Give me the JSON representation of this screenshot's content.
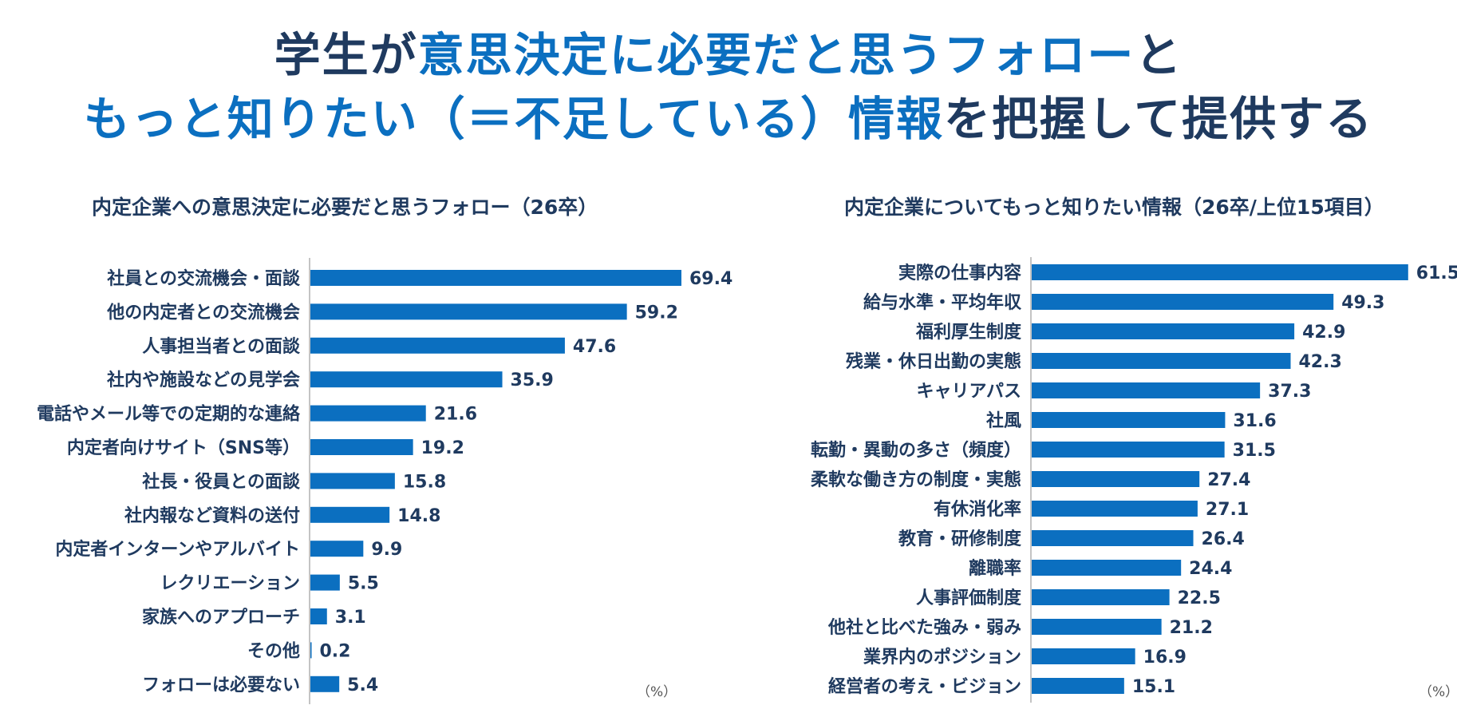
{
  "headline": {
    "line1": [
      {
        "text": "学生が",
        "highlight": false
      },
      {
        "text": "意思決定に必要だと思うフォロー",
        "highlight": true
      },
      {
        "text": "と",
        "highlight": false
      }
    ],
    "line2": [
      {
        "text": "もっと知りたい（＝不足している）情報",
        "highlight": true
      },
      {
        "text": "を把握して提供する",
        "highlight": false
      }
    ]
  },
  "colors": {
    "bar": "#0b6fc0",
    "text": "#1f3a5f",
    "highlight": "#0b6fc0",
    "axis": "#b0b0b0"
  },
  "chart_data": [
    {
      "type": "bar",
      "orientation": "horizontal",
      "title": "内定企業への意思決定に必要だと思うフォロー（26卒）",
      "unit_label": "（%）",
      "xlim": [
        0,
        80
      ],
      "categories": [
        "社員との交流機会・面談",
        "他の内定者との交流機会",
        "人事担当者との面談",
        "社内や施設などの見学会",
        "電話やメール等での定期的な連絡",
        "内定者向けサイト（SNS等）",
        "社長・役員との面談",
        "社内報など資料の送付",
        "内定者インターンやアルバイト",
        "レクリエーション",
        "家族へのアプローチ",
        "その他",
        "フォローは必要ない"
      ],
      "values": [
        69.4,
        59.2,
        47.6,
        35.9,
        21.6,
        19.2,
        15.8,
        14.8,
        9.9,
        5.5,
        3.1,
        0.2,
        5.4
      ],
      "labels": [
        "69.4",
        "59.2",
        "47.6",
        "35.9",
        "21.6",
        "19.2",
        "15.8",
        "14.8",
        "9.9",
        "5.5",
        "3.1",
        "0.2",
        "5.4"
      ]
    },
    {
      "type": "bar",
      "orientation": "horizontal",
      "title": "内定企業についてもっと知りたい情報（26卒/上位15項目）",
      "unit_label": "（%）",
      "xlim": [
        0,
        70
      ],
      "categories": [
        "実際の仕事内容",
        "給与水準・平均年収",
        "福利厚生制度",
        "残業・休日出勤の実態",
        "キャリアパス",
        "社風",
        "転勤・異動の多さ（頻度）",
        "柔軟な働き方の制度・実態",
        "有休消化率",
        "教育・研修制度",
        "離職率",
        "人事評価制度",
        "他社と比べた強み・弱み",
        "業界内のポジション",
        "経営者の考え・ビジョン"
      ],
      "values": [
        61.5,
        49.3,
        42.9,
        42.3,
        37.3,
        31.6,
        31.5,
        27.4,
        27.1,
        26.4,
        24.4,
        22.5,
        21.2,
        16.9,
        15.1
      ],
      "labels": [
        "61.5",
        "49.3",
        "42.9",
        "42.3",
        "37.3",
        "31.6",
        "31.5",
        "27.4",
        "27.1",
        "26.4",
        "24.4",
        "22.5",
        "21.2",
        "16.9",
        "15.1"
      ]
    }
  ]
}
